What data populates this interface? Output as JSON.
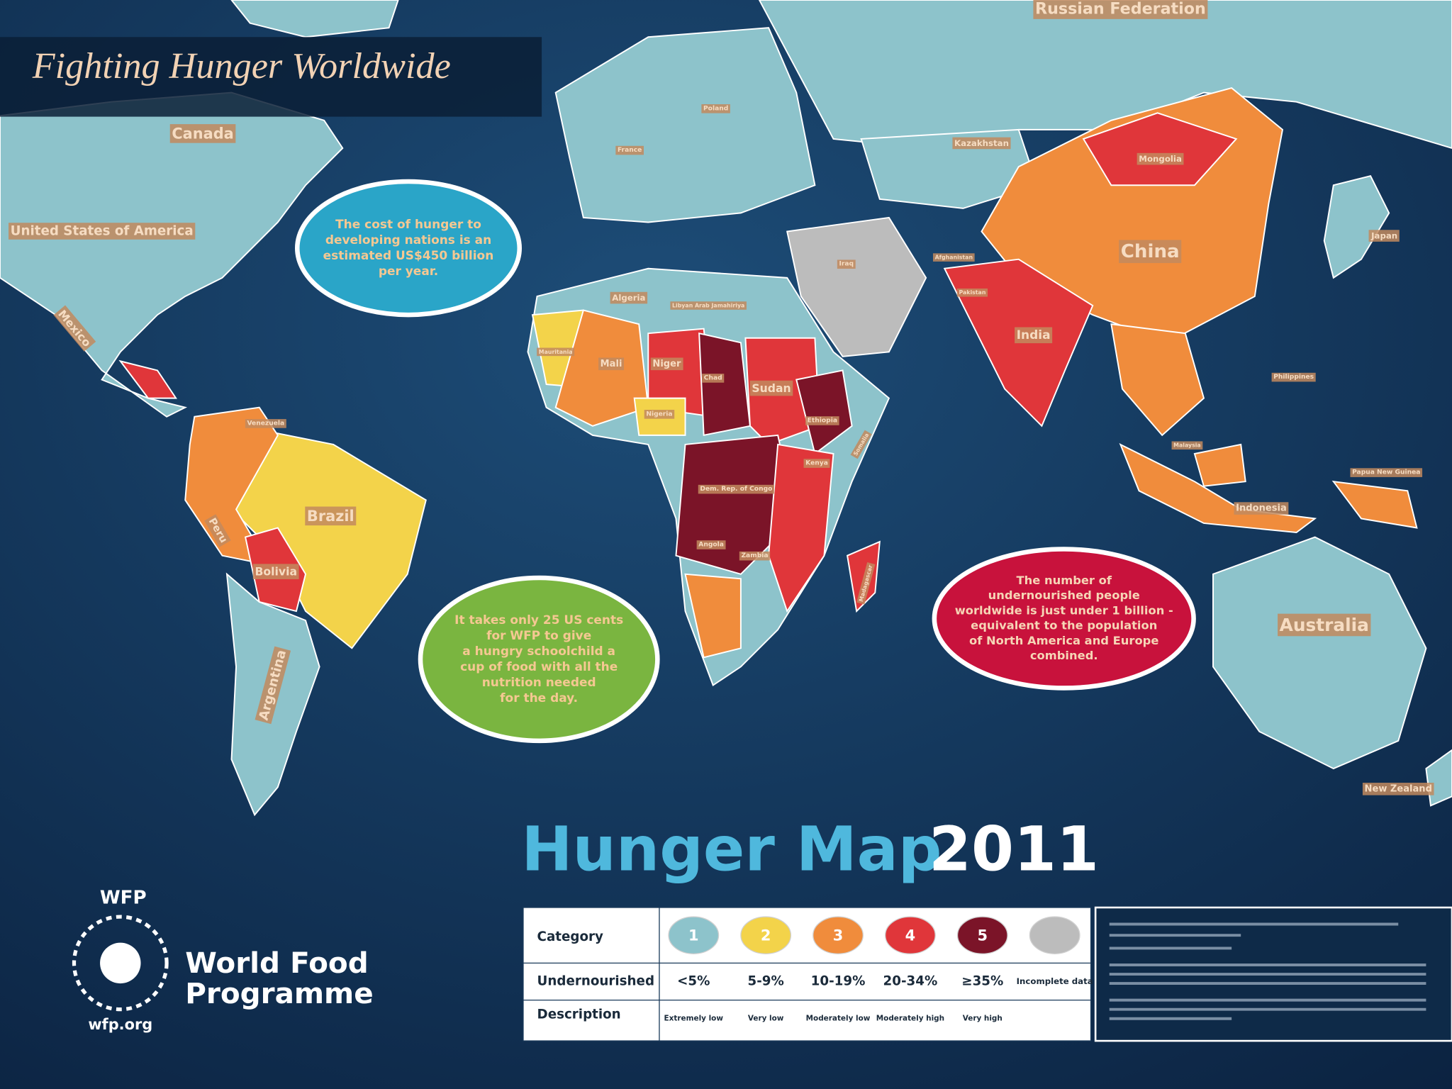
{
  "header": {
    "title": "Fighting Hunger Worldwide"
  },
  "map": {
    "countries": [
      "Russian Federation",
      "Canada",
      "United States of America",
      "Mexico",
      "Kazakhstan",
      "Mongolia",
      "China",
      "Japan",
      "India",
      "Philippines",
      "Indonesia",
      "Papua New Guinea",
      "Australia",
      "New Zealand",
      "Brazil",
      "Peru",
      "Bolivia",
      "Argentina",
      "Venezuela",
      "Algeria",
      "Libyan Arab Jamahiriya",
      "Niger",
      "Mali",
      "Mauritania",
      "Chad",
      "Sudan",
      "Ethiopia",
      "Nigeria",
      "Dem. Rep. of Congo",
      "Angola",
      "Zambia",
      "Kenya",
      "Somalia",
      "Madagascar",
      "Iraq",
      "Afghanistan",
      "Pakistan",
      "France",
      "Poland",
      "Malaysia"
    ]
  },
  "bubbles": [
    {
      "lines": [
        "The cost of hunger to",
        "developing nations is an",
        "estimated US$450 billion",
        "per year."
      ]
    },
    {
      "lines": [
        "It takes only 25 US cents",
        "for WFP to give",
        "a hungry schoolchild a",
        "cup of food with all the",
        "nutrition needed",
        "for the day."
      ]
    },
    {
      "lines": [
        "The number of",
        "undernourished people",
        "worldwide is just under 1 billion -",
        "equivalent to the population",
        "of North America and Europe",
        "combined."
      ]
    }
  ],
  "hunger_map": {
    "title": "Hunger Map",
    "year": "2011"
  },
  "logo": {
    "acronym": "WFP",
    "name_lines": [
      "World Food",
      "Programme"
    ],
    "url": "wfp.org"
  },
  "legend": {
    "row_headers": [
      "Category",
      "Undernourished",
      "Description"
    ],
    "categories": [
      "1",
      "2",
      "3",
      "4",
      "5"
    ],
    "colors": [
      "#8dc3cb",
      "#f3d34a",
      "#f08c3c",
      "#e0363a",
      "#7b1428",
      "#bcbcbc"
    ],
    "undernourished": [
      "<5%",
      "5-9%",
      "10-19%",
      "20-34%",
      "≥35%",
      "Incomplete data"
    ],
    "descriptions": [
      "Extremely low",
      "Very low",
      "Moderately low",
      "Moderately high",
      "Very high"
    ]
  }
}
